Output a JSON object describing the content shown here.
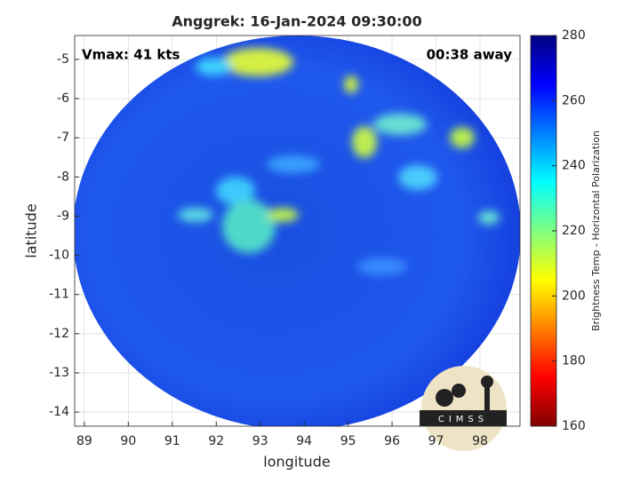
{
  "title": "Anggrek: 16-Jan-2024 09:30:00",
  "annotations": {
    "vmax": "Vmax: 41 kts",
    "timing": "00:38 away"
  },
  "map": {
    "xlabel": "longitude",
    "ylabel": "latitude",
    "xlim": [
      88.78,
      98.91
    ],
    "ylim": [
      -14.36,
      -4.39
    ],
    "xticks": [
      89,
      90,
      91,
      92,
      93,
      94,
      95,
      96,
      97,
      98
    ],
    "yticks": [
      -5,
      -6,
      -7,
      -8,
      -9,
      -10,
      -11,
      -12,
      -13,
      -14
    ],
    "grid": true
  },
  "colorbar": {
    "label": "Brightness Temp - Horizontal Polarization",
    "lim": [
      160,
      280
    ],
    "ticks": [
      160,
      180,
      200,
      220,
      240,
      260,
      280
    ],
    "colormap": "jet"
  },
  "logo": {
    "text": "CIMSS"
  }
}
